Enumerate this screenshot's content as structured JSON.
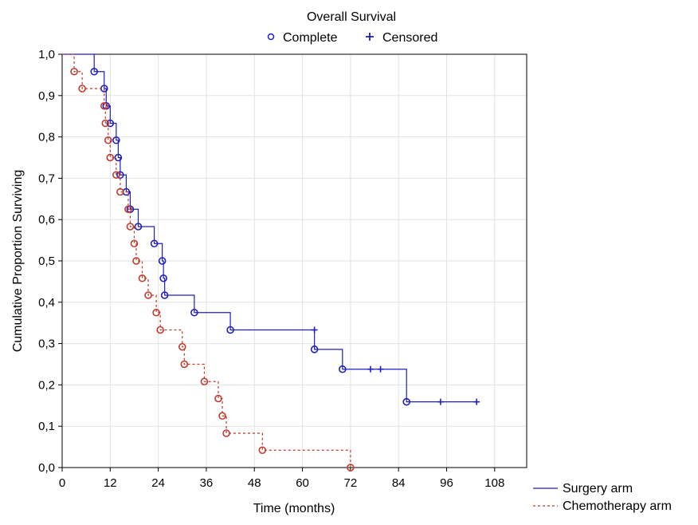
{
  "chart_data": {
    "type": "line",
    "subtype": "kaplan-meier step",
    "title": "Overall Survival",
    "xlabel": "Time (months)",
    "ylabel": "Cumulative Proportion Surviving",
    "xlim": [
      0,
      116
    ],
    "ylim": [
      0,
      1.0
    ],
    "x_ticks": [
      0,
      12,
      24,
      36,
      48,
      60,
      72,
      84,
      96,
      108
    ],
    "x_tick_labels": [
      "0",
      "12",
      "24",
      "36",
      "48",
      "60",
      "72",
      "84",
      "96",
      "108"
    ],
    "y_ticks": [
      0,
      0.1,
      0.2,
      0.3,
      0.4,
      0.5,
      0.6,
      0.7,
      0.8,
      0.9,
      1.0
    ],
    "y_tick_labels": [
      "0,0",
      "0,1",
      "0,2",
      "0,3",
      "0,4",
      "0,5",
      "0,6",
      "0,7",
      "0,8",
      "0,9",
      "1,0"
    ],
    "grid": true,
    "marker_legend": {
      "placement": "top-center",
      "items": [
        {
          "symbol": "circle",
          "label": "Complete"
        },
        {
          "symbol": "plus",
          "label": "Censored"
        }
      ]
    },
    "series_legend": {
      "placement": "bottom-right",
      "items": [
        {
          "label": "Surgery arm",
          "color": "#1f1fbf",
          "dash": "solid"
        },
        {
          "label": "Chemotherapy arm",
          "color": "#c0392b",
          "dash": "dashed"
        }
      ]
    },
    "series": [
      {
        "name": "Surgery arm",
        "color": "#1f1fbf",
        "dash": "solid",
        "steps": [
          [
            0,
            1.0
          ],
          [
            8,
            0.958
          ],
          [
            10.5,
            0.917
          ],
          [
            11,
            0.875
          ],
          [
            12,
            0.833
          ],
          [
            13.5,
            0.792
          ],
          [
            14,
            0.75
          ],
          [
            14.5,
            0.708
          ],
          [
            16,
            0.667
          ],
          [
            17,
            0.625
          ],
          [
            19,
            0.583
          ],
          [
            23,
            0.542
          ],
          [
            25,
            0.5
          ],
          [
            25.3,
            0.458
          ],
          [
            25.6,
            0.417
          ],
          [
            33,
            0.375
          ],
          [
            42,
            0.333
          ],
          [
            63,
            0.286
          ],
          [
            70,
            0.238
          ],
          [
            86,
            0.159
          ]
        ],
        "end_x": 104,
        "events": [
          [
            8,
            0.958
          ],
          [
            10.5,
            0.917
          ],
          [
            11,
            0.875
          ],
          [
            12,
            0.833
          ],
          [
            13.5,
            0.792
          ],
          [
            14,
            0.75
          ],
          [
            14.5,
            0.708
          ],
          [
            16,
            0.667
          ],
          [
            17,
            0.625
          ],
          [
            19,
            0.583
          ],
          [
            23,
            0.542
          ],
          [
            25,
            0.5
          ],
          [
            25.3,
            0.458
          ],
          [
            25.6,
            0.417
          ],
          [
            33,
            0.375
          ],
          [
            42,
            0.333
          ],
          [
            63,
            0.286
          ],
          [
            70,
            0.238
          ],
          [
            86,
            0.159
          ]
        ],
        "censored": [
          [
            63,
            0.333
          ],
          [
            77,
            0.238
          ],
          [
            79.5,
            0.238
          ],
          [
            94.5,
            0.159
          ],
          [
            103.5,
            0.159
          ]
        ]
      },
      {
        "name": "Chemotherapy arm",
        "color": "#c0392b",
        "dash": "dashed",
        "steps": [
          [
            0,
            1.0
          ],
          [
            3,
            0.958
          ],
          [
            5,
            0.917
          ],
          [
            10.5,
            0.875
          ],
          [
            10.8,
            0.833
          ],
          [
            11.5,
            0.792
          ],
          [
            12,
            0.75
          ],
          [
            13.5,
            0.708
          ],
          [
            14.5,
            0.667
          ],
          [
            16.5,
            0.625
          ],
          [
            17,
            0.583
          ],
          [
            18,
            0.542
          ],
          [
            18.5,
            0.5
          ],
          [
            20,
            0.458
          ],
          [
            21.5,
            0.417
          ],
          [
            23.5,
            0.375
          ],
          [
            24.5,
            0.333
          ],
          [
            30,
            0.292
          ],
          [
            30.5,
            0.25
          ],
          [
            35.5,
            0.208
          ],
          [
            39,
            0.167
          ],
          [
            40,
            0.125
          ],
          [
            41,
            0.083
          ],
          [
            50,
            0.042
          ],
          [
            72,
            0.0
          ]
        ],
        "end_x": 72,
        "events": [
          [
            3,
            0.958
          ],
          [
            5,
            0.917
          ],
          [
            10.5,
            0.875
          ],
          [
            10.8,
            0.833
          ],
          [
            11.5,
            0.792
          ],
          [
            12,
            0.75
          ],
          [
            13.5,
            0.708
          ],
          [
            14.5,
            0.667
          ],
          [
            16.5,
            0.625
          ],
          [
            17,
            0.583
          ],
          [
            18,
            0.542
          ],
          [
            18.5,
            0.5
          ],
          [
            20,
            0.458
          ],
          [
            21.5,
            0.417
          ],
          [
            23.5,
            0.375
          ],
          [
            24.5,
            0.333
          ],
          [
            30,
            0.292
          ],
          [
            30.5,
            0.25
          ],
          [
            35.5,
            0.208
          ],
          [
            39,
            0.167
          ],
          [
            40,
            0.125
          ],
          [
            41,
            0.083
          ],
          [
            50,
            0.042
          ],
          [
            72,
            0.0
          ]
        ],
        "censored": []
      }
    ]
  }
}
